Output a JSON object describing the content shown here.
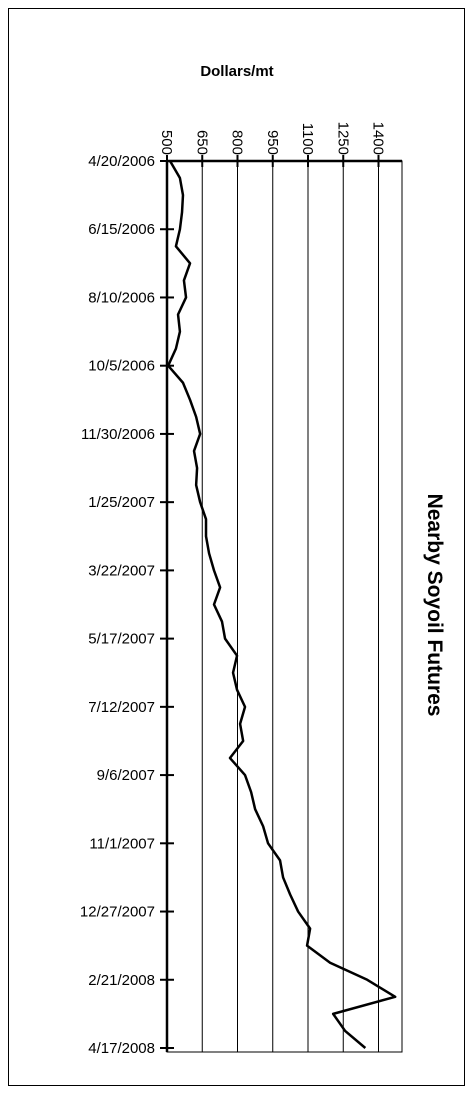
{
  "chart_data": {
    "type": "line",
    "orientation": "horizontal",
    "title": "Nearby Soyoil Futures",
    "value_axis_label": "Dollars/mt",
    "categories": [
      "4/20/2006",
      null,
      null,
      null,
      "6/15/2006",
      null,
      null,
      null,
      "8/10/2006",
      null,
      null,
      null,
      "10/5/2006",
      null,
      null,
      null,
      "11/30/2006",
      null,
      null,
      null,
      "1/25/2007",
      null,
      null,
      null,
      "3/22/2007",
      null,
      null,
      null,
      "5/17/2007",
      null,
      null,
      null,
      "7/12/2007",
      null,
      null,
      null,
      "9/6/2007",
      null,
      null,
      null,
      "11/1/2007",
      null,
      null,
      null,
      "12/27/2007",
      null,
      null,
      null,
      "2/21/2008",
      null,
      null,
      null,
      "4/17/2008"
    ],
    "values": [
      513,
      555,
      568,
      564,
      555,
      538,
      598,
      572,
      581,
      547,
      555,
      538,
      505,
      568,
      598,
      624,
      641,
      615,
      628,
      624,
      641,
      666,
      666,
      679,
      700,
      726,
      700,
      734,
      747,
      798,
      781,
      798,
      832,
      811,
      824,
      768,
      832,
      858,
      875,
      909,
      930,
      981,
      994,
      1024,
      1058,
      1109,
      1096,
      1194,
      1352,
      1471,
      1207,
      1258,
      1344
    ],
    "color": "#000000",
    "xlim": [
      500,
      1500
    ],
    "xticks": [
      500,
      650,
      800,
      950,
      1100,
      1250,
      1400
    ],
    "grid": true
  }
}
